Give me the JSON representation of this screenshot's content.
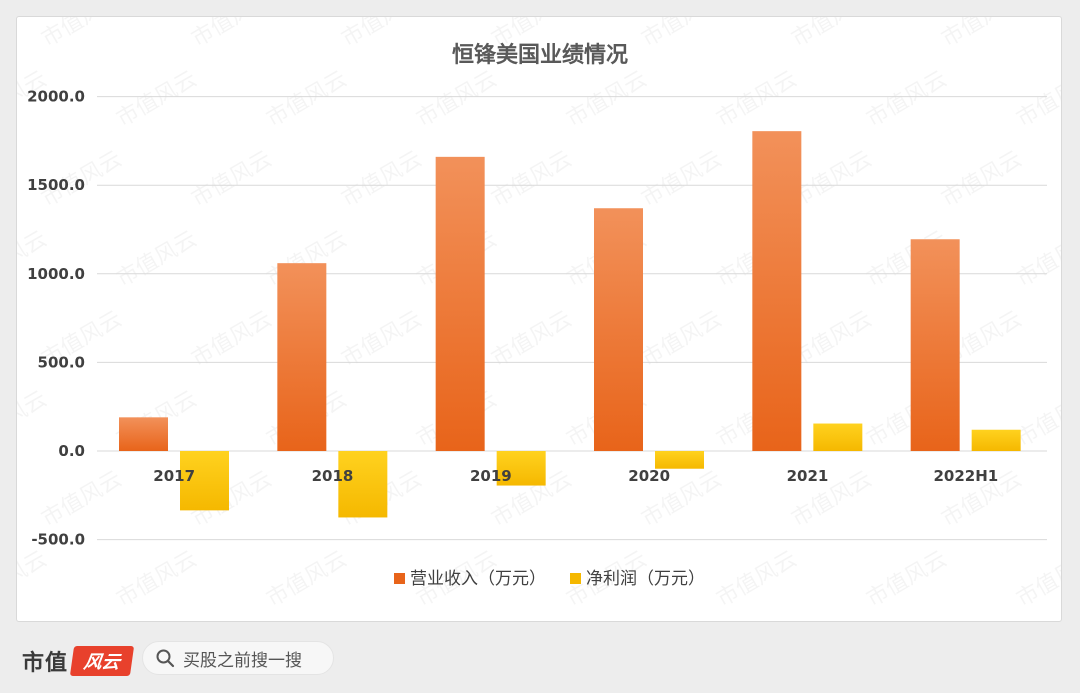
{
  "chart_data": {
    "type": "bar",
    "title": "恒锋美国业绩情况",
    "categories": [
      "2017",
      "2018",
      "2019",
      "2020",
      "2021",
      "2022H1"
    ],
    "series": [
      {
        "name": "营业收入（万元）",
        "values": [
          190,
          1060,
          1660,
          1370,
          1805,
          1195
        ]
      },
      {
        "name": "净利润（万元）",
        "values": [
          -335,
          -375,
          -195,
          -100,
          155,
          120
        ]
      }
    ],
    "ylim": [
      -500,
      2000
    ],
    "yticks": [
      2000,
      1500,
      1000,
      500,
      0,
      -500
    ],
    "ytick_labels": [
      "2000.0",
      "1500.0",
      "1000.0",
      "500.0",
      "0.0",
      "-500.0"
    ],
    "xlabel": "",
    "ylabel": "",
    "grid": true,
    "legend_position": "bottom-center",
    "colors": {
      "series_0_top": "#f2915a",
      "series_0_bottom": "#e8641a",
      "series_1_top": "#ffd21f",
      "series_1_bottom": "#f5b800",
      "grid": "#d9d9d9",
      "axis_text": "#404040"
    }
  },
  "watermark": "市值风云",
  "footer": {
    "brand_text": "市值",
    "brand_logo_text": "风云",
    "search_icon": "search-icon",
    "search_text": "买股之前搜一搜"
  }
}
